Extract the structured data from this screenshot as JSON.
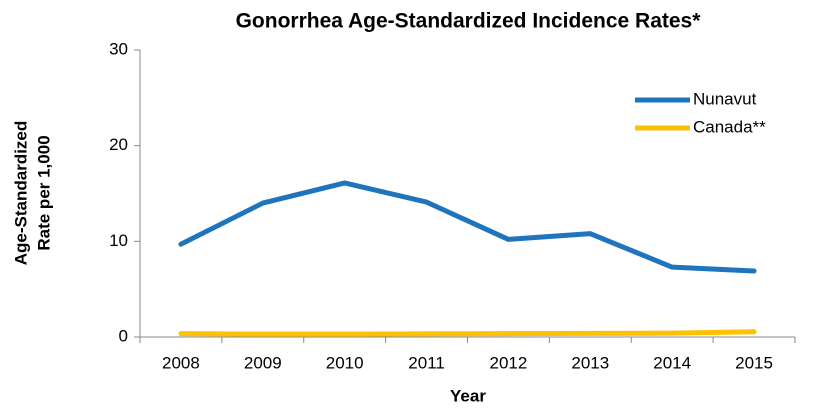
{
  "chart_data": {
    "type": "line",
    "title": "Gonorrhea Age-Standardized Incidence Rates*",
    "xlabel": "Year",
    "ylabel": [
      "Age-Standardized",
      "Rate per 1,000"
    ],
    "categories": [
      "2008",
      "2009",
      "2010",
      "2011",
      "2012",
      "2013",
      "2014",
      "2015"
    ],
    "series": [
      {
        "name": "Nunavut",
        "color": "#1f74bd",
        "values": [
          9.7,
          14.0,
          16.1,
          14.1,
          10.2,
          10.8,
          7.3,
          6.9
        ]
      },
      {
        "name": "Canada**",
        "color": "#ffc000",
        "values": [
          0.35,
          0.3,
          0.3,
          0.33,
          0.35,
          0.38,
          0.4,
          0.55
        ]
      }
    ],
    "ylim": [
      0,
      30
    ],
    "yticks": [
      0,
      10,
      20,
      30
    ],
    "grid": false,
    "legend": "upper right"
  }
}
